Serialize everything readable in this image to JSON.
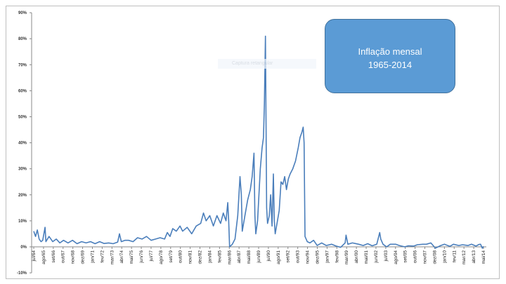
{
  "chart_data": {
    "type": "line",
    "title": "",
    "annotation": {
      "line1": "Inflação mensal",
      "line2": "1965-2014"
    },
    "watermark": "Captura retangular",
    "ylabel": "",
    "xlabel": "",
    "ylim": [
      -10,
      90
    ],
    "yticks": [
      "-10%",
      "0%",
      "10%",
      "20%",
      "30%",
      "40%",
      "50%",
      "60%",
      "70%",
      "80%",
      "90%"
    ],
    "ytick_values": [
      -10,
      0,
      10,
      20,
      30,
      40,
      50,
      60,
      70,
      80,
      90
    ],
    "xticks": [
      "jul/64",
      "ago/65",
      "set/66",
      "out/67",
      "nov/68",
      "dez/69",
      "jan/71",
      "fev/72",
      "mar/73",
      "abr/74",
      "mai/75",
      "jun/76",
      "jul/77",
      "ago/78",
      "set/79",
      "out/80",
      "nov/81",
      "dez/82",
      "jan/84",
      "fev/85",
      "mar/86",
      "abr/87",
      "mai/88",
      "jun/89",
      "jul/90",
      "ago/91",
      "set/92",
      "out/93",
      "nov/94",
      "dez/95",
      "jan/97",
      "fev/98",
      "mar/99",
      "abr/00",
      "mai/01",
      "jun/02",
      "jul/03",
      "ago/04",
      "set/05",
      "out/06",
      "nov/07",
      "dez/08",
      "jan/10",
      "fev/11",
      "mar/12",
      "abr/13",
      "mai/14"
    ],
    "xrange_years": [
      1964.5,
      2014.33
    ],
    "series": [
      {
        "name": "Inflação mensal (%)",
        "color": "#4a7ebb",
        "points": [
          [
            1964.5,
            6
          ],
          [
            1964.7,
            4
          ],
          [
            1964.9,
            6.5
          ],
          [
            1965.1,
            3
          ],
          [
            1965.3,
            2
          ],
          [
            1965.5,
            2.5
          ],
          [
            1965.75,
            7.5
          ],
          [
            1965.85,
            2
          ],
          [
            1966.2,
            4
          ],
          [
            1966.6,
            2
          ],
          [
            1967,
            3
          ],
          [
            1967.4,
            1.5
          ],
          [
            1967.8,
            2.5
          ],
          [
            1968.3,
            1.5
          ],
          [
            1968.8,
            2.5
          ],
          [
            1969.3,
            1.2
          ],
          [
            1969.8,
            2
          ],
          [
            1970.3,
            1.5
          ],
          [
            1970.8,
            2
          ],
          [
            1971.3,
            1.2
          ],
          [
            1971.8,
            2
          ],
          [
            1972.3,
            1.3
          ],
          [
            1972.8,
            1.5
          ],
          [
            1973.3,
            1.2
          ],
          [
            1973.8,
            1.8
          ],
          [
            1974.0,
            5
          ],
          [
            1974.2,
            2
          ],
          [
            1974.6,
            2.5
          ],
          [
            1975,
            2.5
          ],
          [
            1975.5,
            2
          ],
          [
            1976,
            3.5
          ],
          [
            1976.5,
            3
          ],
          [
            1977,
            4
          ],
          [
            1977.5,
            2.5
          ],
          [
            1978,
            3
          ],
          [
            1978.5,
            3.5
          ],
          [
            1979,
            3
          ],
          [
            1979.3,
            5.5
          ],
          [
            1979.6,
            4
          ],
          [
            1979.9,
            7
          ],
          [
            1980.3,
            6
          ],
          [
            1980.7,
            8
          ],
          [
            1981,
            6
          ],
          [
            1981.5,
            7.5
          ],
          [
            1982,
            5
          ],
          [
            1982.5,
            8
          ],
          [
            1983,
            9
          ],
          [
            1983.3,
            13
          ],
          [
            1983.6,
            10
          ],
          [
            1984,
            12
          ],
          [
            1984.4,
            8
          ],
          [
            1984.8,
            12
          ],
          [
            1985.2,
            9
          ],
          [
            1985.5,
            13
          ],
          [
            1985.8,
            10
          ],
          [
            1986.0,
            17
          ],
          [
            1986.1,
            10
          ],
          [
            1986.2,
            0
          ],
          [
            1986.5,
            1
          ],
          [
            1986.8,
            3
          ],
          [
            1987.1,
            12
          ],
          [
            1987.35,
            27
          ],
          [
            1987.5,
            20
          ],
          [
            1987.6,
            6
          ],
          [
            1987.9,
            12
          ],
          [
            1988.2,
            18
          ],
          [
            1988.5,
            22
          ],
          [
            1988.7,
            27
          ],
          [
            1988.9,
            36
          ],
          [
            1989.0,
            12
          ],
          [
            1989.1,
            5
          ],
          [
            1989.3,
            10
          ],
          [
            1989.6,
            30
          ],
          [
            1989.8,
            38
          ],
          [
            1989.95,
            42
          ],
          [
            1990.05,
            55
          ],
          [
            1990.17,
            81
          ],
          [
            1990.3,
            15
          ],
          [
            1990.4,
            9
          ],
          [
            1990.6,
            12
          ],
          [
            1990.75,
            20
          ],
          [
            1990.9,
            8
          ],
          [
            1991.05,
            28
          ],
          [
            1991.15,
            10
          ],
          [
            1991.25,
            5
          ],
          [
            1991.5,
            10
          ],
          [
            1991.7,
            14
          ],
          [
            1991.9,
            25
          ],
          [
            1992.1,
            24
          ],
          [
            1992.3,
            27
          ],
          [
            1992.5,
            22
          ],
          [
            1992.7,
            26
          ],
          [
            1992.9,
            28
          ],
          [
            1993.2,
            30
          ],
          [
            1993.5,
            33
          ],
          [
            1993.8,
            38
          ],
          [
            1994.0,
            42
          ],
          [
            1994.2,
            44
          ],
          [
            1994.35,
            46
          ],
          [
            1994.45,
            40
          ],
          [
            1994.55,
            4
          ],
          [
            1994.8,
            2
          ],
          [
            1995.1,
            1.5
          ],
          [
            1995.5,
            2.5
          ],
          [
            1995.9,
            0.5
          ],
          [
            1996.4,
            1.5
          ],
          [
            1996.9,
            0.5
          ],
          [
            1997.5,
            1
          ],
          [
            1998,
            0.3
          ],
          [
            1998.5,
            -0.2
          ],
          [
            1999.0,
            1.5
          ],
          [
            1999.1,
            4.5
          ],
          [
            1999.3,
            1
          ],
          [
            1999.8,
            1.5
          ],
          [
            2000.5,
            1
          ],
          [
            2001,
            0.5
          ],
          [
            2001.5,
            1.2
          ],
          [
            2002,
            0.4
          ],
          [
            2002.5,
            1
          ],
          [
            2002.83,
            5.5
          ],
          [
            2002.95,
            3
          ],
          [
            2003.2,
            1
          ],
          [
            2003.6,
            0
          ],
          [
            2004,
            1
          ],
          [
            2004.6,
            1
          ],
          [
            2005,
            0.5
          ],
          [
            2005.6,
            0
          ],
          [
            2006,
            0.4
          ],
          [
            2006.6,
            0.3
          ],
          [
            2007,
            0.8
          ],
          [
            2007.6,
            1
          ],
          [
            2008,
            1
          ],
          [
            2008.5,
            1.5
          ],
          [
            2009,
            -0.5
          ],
          [
            2009.6,
            0.5
          ],
          [
            2010,
            1
          ],
          [
            2010.6,
            0.2
          ],
          [
            2011,
            1
          ],
          [
            2011.6,
            0.5
          ],
          [
            2012,
            0.8
          ],
          [
            2012.6,
            0.5
          ],
          [
            2013,
            1
          ],
          [
            2013.5,
            0.3
          ],
          [
            2013.8,
            0.9
          ],
          [
            2014,
            1
          ],
          [
            2014.2,
            -0.5
          ],
          [
            2014.33,
            0.2
          ]
        ]
      }
    ]
  }
}
